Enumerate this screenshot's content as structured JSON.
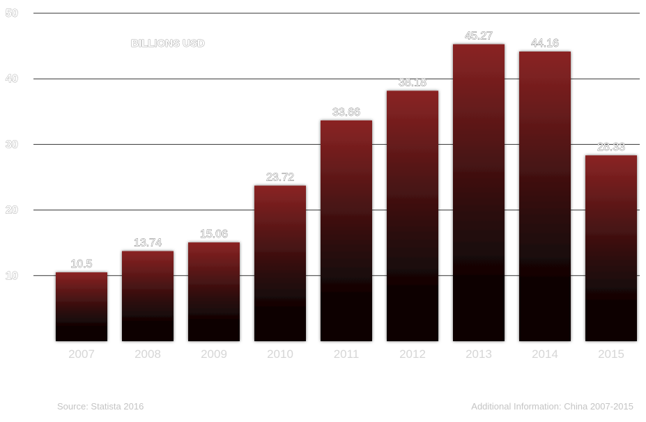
{
  "chart_data": {
    "type": "bar",
    "categories": [
      "2007",
      "2008",
      "2009",
      "2010",
      "2011",
      "2012",
      "2013",
      "2014",
      "2015"
    ],
    "values": [
      10.5,
      13.74,
      15.06,
      23.72,
      33.66,
      38.18,
      45.27,
      44.16,
      28.33
    ],
    "value_labels": [
      "10.5",
      "13.74",
      "15.06",
      "23.72",
      "33.66",
      "38.18",
      "45.27",
      "44.16",
      "28.33"
    ],
    "yticks": [
      "10",
      "20",
      "30",
      "40",
      "50"
    ],
    "ylim": [
      0,
      50
    ],
    "unit_label": "BILLIONS   USD",
    "grid": true,
    "bar_color_top": "#8a2424",
    "bar_color_bottom": "#0c0404"
  },
  "footer": {
    "source": "Source: Statista 2016",
    "info": "Additional Information: China 2007-2015"
  }
}
